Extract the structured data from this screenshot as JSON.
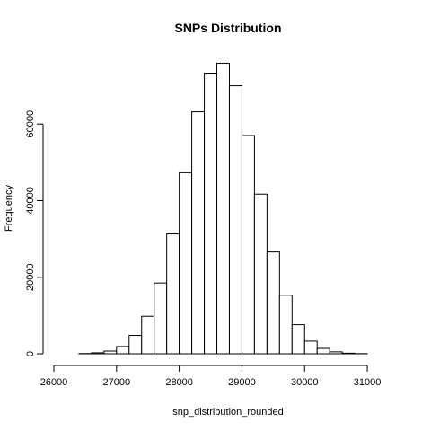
{
  "chart_data": {
    "type": "histogram",
    "title": "SNPs Distribution",
    "xlabel": "snp_distribution_rounded",
    "ylabel": "Frequency",
    "bin_width": 200,
    "bins": [
      {
        "x0": 26000,
        "x1": 26200,
        "value": 0
      },
      {
        "x0": 26200,
        "x1": 26400,
        "value": 0
      },
      {
        "x0": 26400,
        "x1": 26600,
        "value": 60
      },
      {
        "x0": 26600,
        "x1": 26800,
        "value": 250
      },
      {
        "x0": 26800,
        "x1": 27000,
        "value": 700
      },
      {
        "x0": 27000,
        "x1": 27200,
        "value": 1900
      },
      {
        "x0": 27200,
        "x1": 27400,
        "value": 4800
      },
      {
        "x0": 27400,
        "x1": 27600,
        "value": 9800
      },
      {
        "x0": 27600,
        "x1": 27800,
        "value": 18500
      },
      {
        "x0": 27800,
        "x1": 28000,
        "value": 31300
      },
      {
        "x0": 28000,
        "x1": 28200,
        "value": 47300
      },
      {
        "x0": 28200,
        "x1": 28400,
        "value": 63200
      },
      {
        "x0": 28400,
        "x1": 28600,
        "value": 73300
      },
      {
        "x0": 28600,
        "x1": 28800,
        "value": 75900
      },
      {
        "x0": 28800,
        "x1": 29000,
        "value": 70000
      },
      {
        "x0": 29000,
        "x1": 29200,
        "value": 57000
      },
      {
        "x0": 29200,
        "x1": 29400,
        "value": 41700
      },
      {
        "x0": 29400,
        "x1": 29600,
        "value": 26600
      },
      {
        "x0": 29600,
        "x1": 29800,
        "value": 15300
      },
      {
        "x0": 29800,
        "x1": 30000,
        "value": 7600
      },
      {
        "x0": 30000,
        "x1": 30200,
        "value": 3300
      },
      {
        "x0": 30200,
        "x1": 30400,
        "value": 1400
      },
      {
        "x0": 30400,
        "x1": 30600,
        "value": 500
      },
      {
        "x0": 30600,
        "x1": 30800,
        "value": 150
      },
      {
        "x0": 30800,
        "x1": 31000,
        "value": 40
      },
      {
        "x0": 31000,
        "x1": 31200,
        "value": 0
      },
      {
        "x0": 31200,
        "x1": 31400,
        "value": 0
      }
    ],
    "xlim": [
      26000,
      31400
    ],
    "ylim": [
      0,
      76000
    ],
    "x_ticks": [
      26000,
      27000,
      28000,
      29000,
      30000,
      31000
    ],
    "x_tick_labels": [
      "26000",
      "27000",
      "28000",
      "29000",
      "30000",
      "31000"
    ],
    "y_ticks": [
      0,
      20000,
      40000,
      60000
    ],
    "y_tick_labels": [
      "0",
      "20000",
      "40000",
      "60000"
    ],
    "grid": false,
    "legend": "none"
  }
}
